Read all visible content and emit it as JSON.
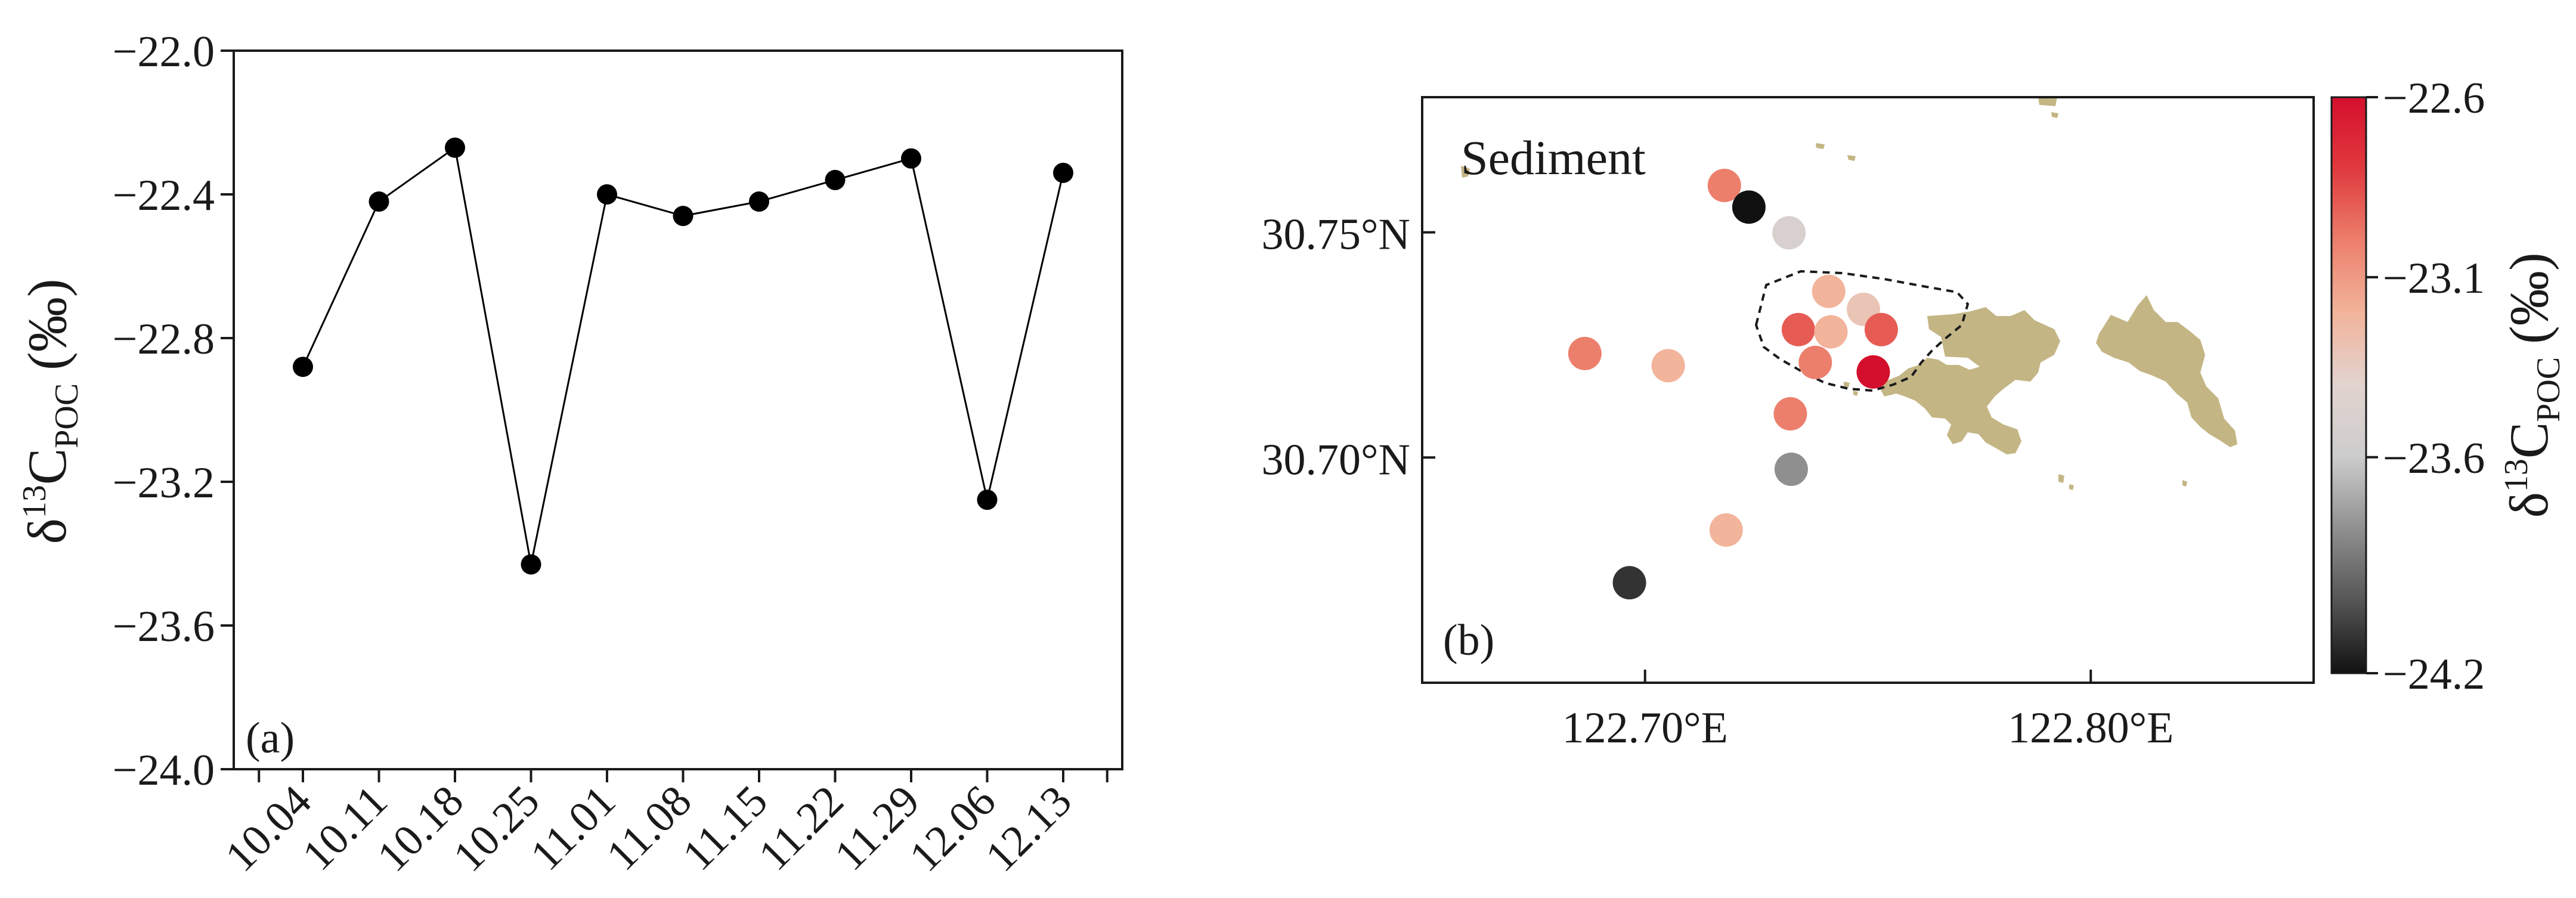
{
  "chart_data": [
    {
      "type": "line",
      "panel_label": "(a)",
      "ylabel": "δ13CPOC (‰)",
      "ylabel_parts": {
        "delta": "δ",
        "sup": "13",
        "base": "C",
        "sub": "POC",
        "unit": "(‰)"
      },
      "categories": [
        "10.04",
        "10.11",
        "10.18",
        "10.25",
        "11.01",
        "11.08",
        "11.15",
        "11.22",
        "11.29",
        "12.06",
        "12.13"
      ],
      "values": [
        -22.88,
        -22.42,
        -22.27,
        -23.43,
        -22.4,
        -22.46,
        -22.42,
        -22.36,
        -22.3,
        -23.25,
        -22.34
      ],
      "ylim": [
        -24.0,
        -22.0
      ],
      "yticks": [
        -24.0,
        -23.6,
        -23.2,
        -22.8,
        -22.4,
        -22.0
      ],
      "ytick_labels": [
        "−24.0",
        "−23.6",
        "−23.2",
        "−22.8",
        "−22.4",
        "−22.0"
      ],
      "grid": false,
      "marker_color": "#000000",
      "line_color": "#000000"
    },
    {
      "type": "scatter",
      "panel_label": "(b)",
      "title": "Sediment",
      "x_unit": "°E",
      "y_unit": "°N",
      "xlim": [
        122.65,
        122.85
      ],
      "ylim": [
        30.65,
        30.78
      ],
      "xticks": [
        122.7,
        122.8
      ],
      "xtick_labels": [
        "122.70°E",
        "122.80°E"
      ],
      "yticks": [
        30.7,
        30.75
      ],
      "ytick_labels": [
        "30.70°N",
        "30.75°N"
      ],
      "points": [
        {
          "lon": 122.7178,
          "lat": 30.7604,
          "value": -23.0
        },
        {
          "lon": 122.7233,
          "lat": 30.7556,
          "value": -24.2
        },
        {
          "lon": 122.7323,
          "lat": 30.7499,
          "value": -23.5
        },
        {
          "lon": 122.7412,
          "lat": 30.7369,
          "value": -23.2
        },
        {
          "lon": 122.749,
          "lat": 30.7329,
          "value": -23.3
        },
        {
          "lon": 122.7344,
          "lat": 30.7284,
          "value": -22.9
        },
        {
          "lon": 122.7417,
          "lat": 30.7279,
          "value": -23.2
        },
        {
          "lon": 122.753,
          "lat": 30.7284,
          "value": -22.9
        },
        {
          "lon": 122.6865,
          "lat": 30.7231,
          "value": -23.0
        },
        {
          "lon": 122.7052,
          "lat": 30.7204,
          "value": -23.2
        },
        {
          "lon": 122.7382,
          "lat": 30.7211,
          "value": -23.0
        },
        {
          "lon": 122.7512,
          "lat": 30.719,
          "value": -22.6
        },
        {
          "lon": 122.7326,
          "lat": 30.7097,
          "value": -23.0
        },
        {
          "lon": 122.7328,
          "lat": 30.6974,
          "value": -23.8
        },
        {
          "lon": 122.7182,
          "lat": 30.6839,
          "value": -23.2
        },
        {
          "lon": 122.6965,
          "lat": 30.6722,
          "value": -24.1
        }
      ],
      "colorbar": {
        "label": "δ13CPOC (‰)",
        "label_parts": {
          "delta": "δ",
          "sup": "13",
          "base": "C",
          "sub": "POC",
          "unit": "(‰)"
        },
        "range": [
          -24.2,
          -22.6
        ],
        "ticks": [
          -24.2,
          -23.6,
          -23.1,
          -22.6
        ],
        "tick_labels": [
          "−24.2",
          "−23.6",
          "−23.1",
          "−22.6"
        ],
        "colors": [
          "#111111",
          "#555555",
          "#8f8f8f",
          "#cccccc",
          "#e2d4cf",
          "#f2b49b",
          "#ec7f6c",
          "#e03a3e",
          "#d40f2d"
        ]
      },
      "land_color": "#c4b585",
      "boundary": "dashed"
    }
  ]
}
